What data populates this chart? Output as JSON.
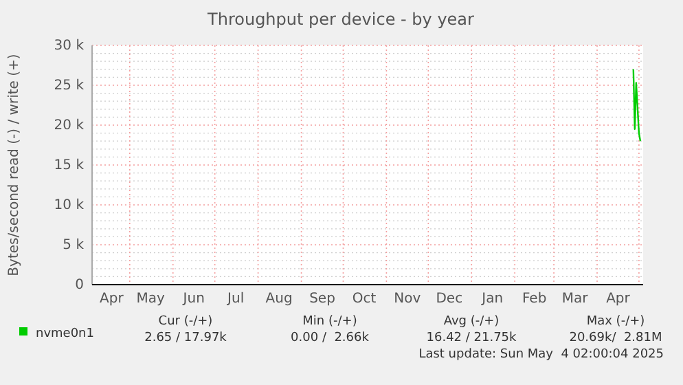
{
  "chart_data": {
    "type": "line",
    "title": "Throughput per device - by year",
    "ylabel": "Bytes/second read (-) / write (+)",
    "x": [
      "2025-04-27",
      "2025-04-28",
      "2025-04-29",
      "2025-05-01",
      "2025-05-02"
    ],
    "series": [
      {
        "name": "nvme0n1",
        "color": "#00cc00",
        "values": [
          27000,
          19500,
          25300,
          19000,
          18000
        ]
      }
    ],
    "xlim": [
      "2024-04-04",
      "2025-05-04"
    ],
    "xticks": [
      {
        "value": "2024-04-18",
        "label": "Apr"
      },
      {
        "value": "2024-05-01",
        "label": null
      },
      {
        "value": "2024-05-16",
        "label": "May"
      },
      {
        "value": "2024-06-01",
        "label": null
      },
      {
        "value": "2024-06-16",
        "label": "Jun"
      },
      {
        "value": "2024-07-01",
        "label": null
      },
      {
        "value": "2024-07-16",
        "label": "Jul"
      },
      {
        "value": "2024-08-01",
        "label": null
      },
      {
        "value": "2024-08-16",
        "label": "Aug"
      },
      {
        "value": "2024-09-01",
        "label": null
      },
      {
        "value": "2024-09-16",
        "label": "Sep"
      },
      {
        "value": "2024-10-01",
        "label": null
      },
      {
        "value": "2024-10-16",
        "label": "Oct"
      },
      {
        "value": "2024-11-01",
        "label": null
      },
      {
        "value": "2024-11-16",
        "label": "Nov"
      },
      {
        "value": "2024-12-01",
        "label": null
      },
      {
        "value": "2024-12-16",
        "label": "Dec"
      },
      {
        "value": "2025-01-01",
        "label": null
      },
      {
        "value": "2025-01-16",
        "label": "Jan"
      },
      {
        "value": "2025-02-01",
        "label": null
      },
      {
        "value": "2025-02-15",
        "label": "Feb"
      },
      {
        "value": "2025-03-01",
        "label": null
      },
      {
        "value": "2025-03-16",
        "label": "Mar"
      },
      {
        "value": "2025-04-01",
        "label": null
      },
      {
        "value": "2025-04-16",
        "label": "Apr"
      },
      {
        "value": "2025-05-01",
        "label": null
      }
    ],
    "ylim": [
      0,
      30000
    ],
    "yticks": [
      0,
      {
        "value": 5000,
        "label": "5 k"
      },
      {
        "value": 10000,
        "label": "10 k"
      },
      {
        "value": 15000,
        "label": "15 k"
      },
      {
        "value": 20000,
        "label": "20 k"
      },
      {
        "value": 25000,
        "label": "25 k"
      },
      {
        "value": 30000,
        "label": "30 k"
      }
    ],
    "grid": true,
    "legend": "bottom",
    "marker": "none",
    "line_style": "solid",
    "annotations": [
      "Cur (-/+)",
      "Min (-/+)",
      "Avg (-/+)",
      "Max (-/+)",
      "2.65 / 17.97k",
      "0.00 /  2.66k",
      "16.42 / 21.75k",
      "20.69k/  2.81M",
      "Last update: Sun May  4 02:00:04 2025"
    ]
  }
}
